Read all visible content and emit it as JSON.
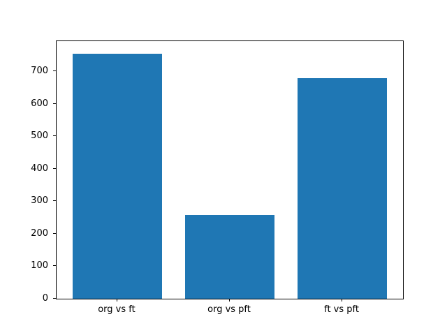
{
  "figure": {
    "background_color": "#ffffff",
    "frame_color": "#000000",
    "text_color": "#000000"
  },
  "chart_data": {
    "type": "bar",
    "title": "",
    "xlabel": "",
    "ylabel": "",
    "categories": [
      "org vs ft",
      "org vs pft",
      "ft vs pft"
    ],
    "values": [
      755,
      258,
      680
    ],
    "bar_color": "#1f77b4",
    "ylim": [
      0,
      793
    ],
    "yticks": [
      0,
      100,
      200,
      300,
      400,
      500,
      600,
      700
    ],
    "grid": false,
    "legend": null
  }
}
